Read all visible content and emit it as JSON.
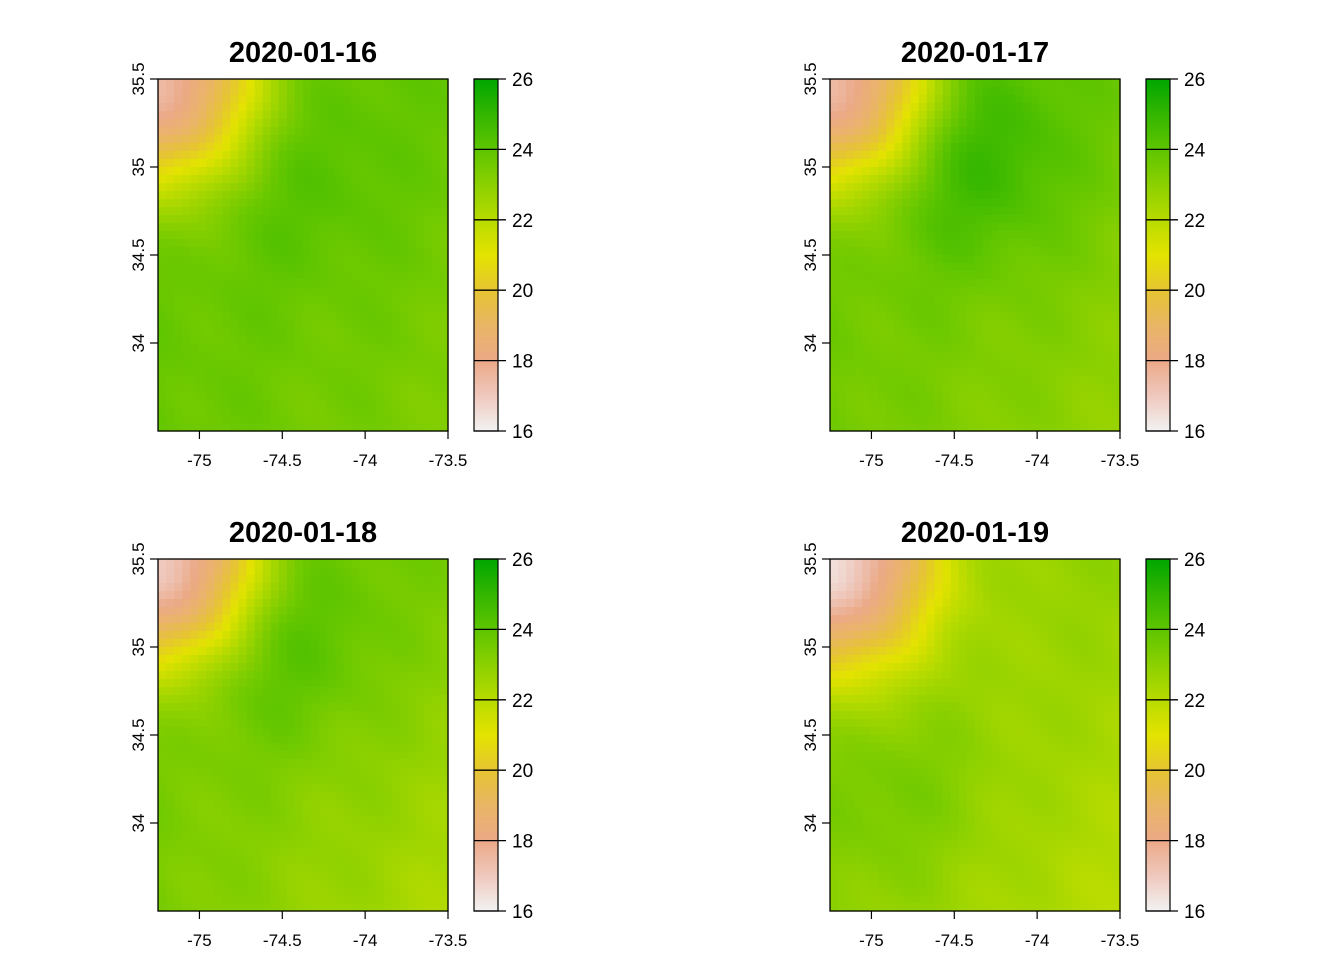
{
  "chart_data": [
    {
      "type": "heatmap",
      "title": "2020-01-16",
      "x_ticks": [
        "-75",
        "-74.5",
        "-74",
        "-73.5"
      ],
      "x_tick_values": [
        -75,
        -74.5,
        -74,
        -73.5
      ],
      "y_ticks": [
        "34",
        "34.5",
        "35",
        "35.5"
      ],
      "y_tick_values": [
        34,
        34.5,
        35,
        35.5
      ],
      "xlim": [
        -75.25,
        -73.5
      ],
      "ylim": [
        33.5,
        35.5
      ],
      "colorbar": {
        "ticks": [
          "16",
          "18",
          "20",
          "22",
          "24",
          "26"
        ],
        "range": [
          16,
          26
        ]
      },
      "field": {
        "cold_corner": 17.5,
        "mean": 23.8,
        "hot_spot": [
          -74.5,
          35.0,
          24.5
        ],
        "se_value": 23.3
      }
    },
    {
      "type": "heatmap",
      "title": "2020-01-17",
      "x_ticks": [
        "-75",
        "-74.5",
        "-74",
        "-73.5"
      ],
      "x_tick_values": [
        -75,
        -74.5,
        -74,
        -73.5
      ],
      "y_ticks": [
        "34",
        "34.5",
        "35",
        "35.5"
      ],
      "y_tick_values": [
        34,
        34.5,
        35,
        35.5
      ],
      "xlim": [
        -75.25,
        -73.5
      ],
      "ylim": [
        33.5,
        35.5
      ],
      "colorbar": {
        "ticks": [
          "16",
          "18",
          "20",
          "22",
          "24",
          "26"
        ],
        "range": [
          16,
          26
        ]
      },
      "field": {
        "cold_corner": 17.5,
        "mean": 23.6,
        "hot_spot": [
          -74.45,
          35.1,
          25.3
        ],
        "se_value": 22.8
      }
    },
    {
      "type": "heatmap",
      "title": "2020-01-18",
      "x_ticks": [
        "-75",
        "-74.5",
        "-74",
        "-73.5"
      ],
      "x_tick_values": [
        -75,
        -74.5,
        -74,
        -73.5
      ],
      "y_ticks": [
        "34",
        "34.5",
        "35",
        "35.5"
      ],
      "y_tick_values": [
        34,
        34.5,
        35,
        35.5
      ],
      "xlim": [
        -75.25,
        -73.5
      ],
      "ylim": [
        33.5,
        35.5
      ],
      "colorbar": {
        "ticks": [
          "16",
          "18",
          "20",
          "22",
          "24",
          "26"
        ],
        "range": [
          16,
          26
        ]
      },
      "field": {
        "cold_corner": 17.0,
        "mean": 23.4,
        "hot_spot": [
          -74.6,
          35.1,
          24.8
        ],
        "se_value": 22.2
      }
    },
    {
      "type": "heatmap",
      "title": "2020-01-19",
      "x_ticks": [
        "-75",
        "-74.5",
        "-74",
        "-73.5"
      ],
      "x_tick_values": [
        -75,
        -74.5,
        -74,
        -73.5
      ],
      "y_ticks": [
        "34",
        "34.5",
        "35",
        "35.5"
      ],
      "y_tick_values": [
        34,
        34.5,
        35,
        35.5
      ],
      "xlim": [
        -75.25,
        -73.5
      ],
      "ylim": [
        33.5,
        35.5
      ],
      "colorbar": {
        "ticks": [
          "16",
          "18",
          "20",
          "22",
          "24",
          "26"
        ],
        "range": [
          16,
          26
        ]
      },
      "field": {
        "cold_corner": 16.5,
        "mean": 22.8,
        "hot_spot": [
          -74.9,
          34.2,
          23.6
        ],
        "se_value": 22.0
      }
    }
  ]
}
